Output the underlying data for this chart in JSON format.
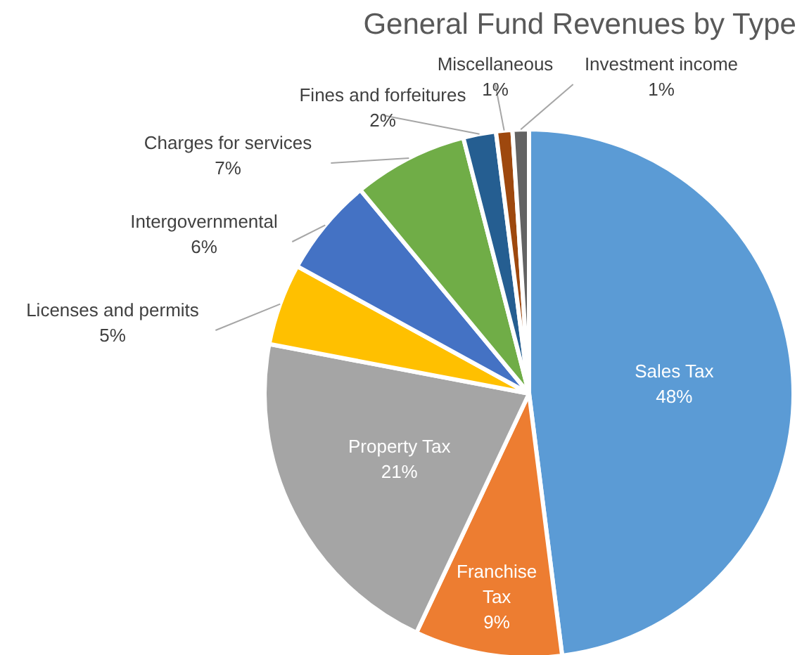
{
  "chart_data": {
    "type": "pie",
    "title": "General Fund Revenues by Type",
    "categories": [
      "Sales Tax",
      "Franchise Tax",
      "Property Tax",
      "Licenses and permits",
      "Intergovernmental",
      "Charges for services",
      "Fines and forfeitures",
      "Miscellaneous",
      "Investment income"
    ],
    "values": [
      48,
      9,
      21,
      5,
      6,
      7,
      2,
      1,
      1
    ],
    "colors": [
      "#5b9bd5",
      "#ed7d31",
      "#a5a5a5",
      "#ffc000",
      "#4472c4",
      "#70ad47",
      "#255e91",
      "#9e480e",
      "#636363"
    ],
    "value_labels": [
      "48%",
      "9%",
      "21%",
      "5%",
      "6%",
      "7%",
      "2%",
      "1%",
      "1%"
    ]
  }
}
